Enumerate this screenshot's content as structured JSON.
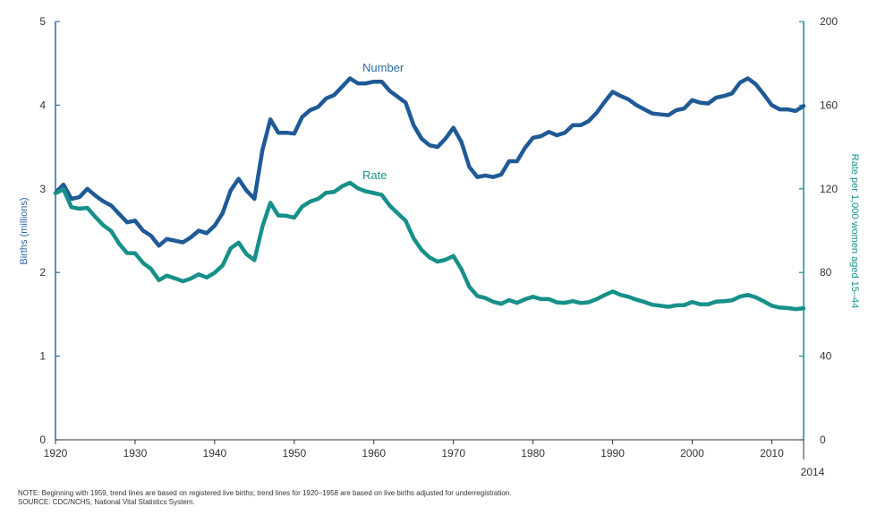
{
  "colors": {
    "number_series": "#1f5a96",
    "rate_series": "#17908a",
    "left_axis": "#2f6ba6",
    "right_axis": "#17908a",
    "tick_text": "#333333"
  },
  "notes": {
    "note": "NOTE: Beginning with 1959, trend lines are based on registered live births; trend lines for 1920–1958 are based on live births adjusted for underregistration.",
    "source": "SOURCE: CDC/NCHS, National Vital Statistics System."
  },
  "chart_data": {
    "type": "line",
    "title": "",
    "xlabel": "",
    "ylabel": "Births (millions)",
    "ylabel_right": "Rate per 1,000 women aged 15–44",
    "xlim": [
      1920,
      2014
    ],
    "ylim": [
      0,
      5
    ],
    "ylim_right": [
      0,
      200
    ],
    "x_ticks": [
      "1920",
      "1930",
      "1940",
      "1950",
      "1960",
      "1970",
      "1980",
      "1990",
      "2000",
      "2010"
    ],
    "x_end_label": "2014",
    "y_ticks": [
      "0",
      "1",
      "2",
      "3",
      "4",
      "5"
    ],
    "y_ticks_right": [
      "0",
      "40",
      "80",
      "120",
      "160",
      "200"
    ],
    "grid": false,
    "legend": "inline labels",
    "series": [
      {
        "name": "Number",
        "axis": "left",
        "x": [
          1920,
          1921,
          1922,
          1923,
          1924,
          1925,
          1926,
          1927,
          1928,
          1929,
          1930,
          1931,
          1932,
          1933,
          1934,
          1935,
          1936,
          1937,
          1938,
          1939,
          1940,
          1941,
          1942,
          1943,
          1944,
          1945,
          1946,
          1947,
          1948,
          1949,
          1950,
          1951,
          1952,
          1953,
          1954,
          1955,
          1956,
          1957,
          1958,
          1959,
          1960,
          1961,
          1962,
          1963,
          1964,
          1965,
          1966,
          1967,
          1968,
          1969,
          1970,
          1971,
          1972,
          1973,
          1974,
          1975,
          1976,
          1977,
          1978,
          1979,
          1980,
          1981,
          1982,
          1983,
          1984,
          1985,
          1986,
          1987,
          1988,
          1989,
          1990,
          1991,
          1992,
          1993,
          1994,
          1995,
          1996,
          1997,
          1998,
          1999,
          2000,
          2001,
          2002,
          2003,
          2004,
          2005,
          2006,
          2007,
          2008,
          2009,
          2010,
          2011,
          2012,
          2013,
          2014
        ],
        "values": [
          2.95,
          3.05,
          2.88,
          2.9,
          3.0,
          2.92,
          2.85,
          2.8,
          2.7,
          2.6,
          2.62,
          2.5,
          2.44,
          2.32,
          2.4,
          2.38,
          2.36,
          2.42,
          2.5,
          2.47,
          2.56,
          2.71,
          2.98,
          3.12,
          2.98,
          2.88,
          3.46,
          3.83,
          3.67,
          3.67,
          3.66,
          3.86,
          3.94,
          3.98,
          4.08,
          4.12,
          4.22,
          4.32,
          4.26,
          4.26,
          4.28,
          4.28,
          4.17,
          4.1,
          4.03,
          3.76,
          3.6,
          3.52,
          3.5,
          3.6,
          3.73,
          3.56,
          3.26,
          3.14,
          3.16,
          3.14,
          3.17,
          3.33,
          3.33,
          3.49,
          3.61,
          3.63,
          3.68,
          3.64,
          3.67,
          3.76,
          3.76,
          3.81,
          3.91,
          4.04,
          4.16,
          4.11,
          4.07,
          4.0,
          3.95,
          3.9,
          3.89,
          3.88,
          3.94,
          3.96,
          4.06,
          4.03,
          4.02,
          4.09,
          4.11,
          4.14,
          4.27,
          4.32,
          4.25,
          4.13,
          4.0,
          3.95,
          3.95,
          3.93,
          3.99
        ]
      },
      {
        "name": "Rate",
        "axis": "right",
        "x": [
          1920,
          1921,
          1922,
          1923,
          1924,
          1925,
          1926,
          1927,
          1928,
          1929,
          1930,
          1931,
          1932,
          1933,
          1934,
          1935,
          1936,
          1937,
          1938,
          1939,
          1940,
          1941,
          1942,
          1943,
          1944,
          1945,
          1946,
          1947,
          1948,
          1949,
          1950,
          1951,
          1952,
          1953,
          1954,
          1955,
          1956,
          1957,
          1958,
          1959,
          1960,
          1961,
          1962,
          1963,
          1964,
          1965,
          1966,
          1967,
          1968,
          1969,
          1970,
          1971,
          1972,
          1973,
          1974,
          1975,
          1976,
          1977,
          1978,
          1979,
          1980,
          1981,
          1982,
          1983,
          1984,
          1985,
          1986,
          1987,
          1988,
          1989,
          1990,
          1991,
          1992,
          1993,
          1994,
          1995,
          1996,
          1997,
          1998,
          1999,
          2000,
          2001,
          2002,
          2003,
          2004,
          2005,
          2006,
          2007,
          2008,
          2009,
          2010,
          2011,
          2012,
          2013,
          2014
        ],
        "values": [
          117.9,
          119.8,
          111.2,
          110.5,
          110.9,
          106.6,
          102.6,
          99.8,
          93.8,
          89.3,
          89.2,
          84.6,
          81.7,
          76.3,
          78.5,
          77.2,
          75.8,
          77.1,
          79.1,
          77.6,
          79.9,
          83.4,
          91.5,
          94.3,
          88.8,
          85.9,
          101.9,
          113.3,
          107.3,
          107.1,
          106.2,
          111.5,
          113.9,
          115.2,
          118.1,
          118.5,
          121.2,
          122.9,
          120.2,
          118.8,
          118.0,
          117.1,
          112.0,
          108.3,
          104.7,
          96.3,
          90.8,
          87.2,
          85.2,
          86.1,
          87.9,
          81.6,
          73.1,
          68.8,
          67.8,
          66.0,
          65.0,
          66.8,
          65.5,
          67.2,
          68.4,
          67.3,
          67.3,
          65.7,
          65.5,
          66.3,
          65.4,
          65.8,
          67.3,
          69.2,
          70.9,
          69.3,
          68.4,
          67.0,
          65.9,
          64.6,
          64.1,
          63.6,
          64.3,
          64.4,
          65.9,
          64.8,
          64.8,
          66.1,
          66.3,
          66.7,
          68.5,
          69.3,
          68.1,
          66.2,
          64.1,
          63.2,
          63.0,
          62.5,
          62.9
        ]
      }
    ],
    "annotations": [
      "Number",
      "Rate"
    ]
  }
}
